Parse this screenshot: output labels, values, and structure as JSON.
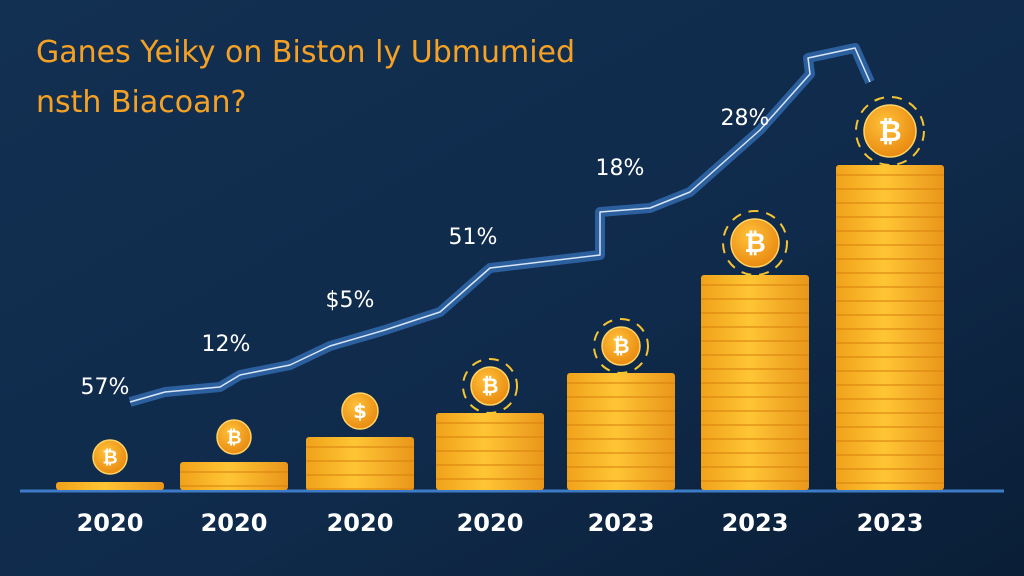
{
  "header": {
    "title_line1": "Ganes Yeiky on Biston ly Ubmumied",
    "title_line2": "nsth Biacoan?"
  },
  "columns": [
    {
      "label": "57%",
      "coin": "₿",
      "year": "2020"
    },
    {
      "label": "12%",
      "coin": "₿",
      "year": "2020"
    },
    {
      "label": "$5%",
      "coin": "$",
      "year": "2020"
    },
    {
      "label": "51%",
      "coin": "₿",
      "year": "2020"
    },
    {
      "label": "18%",
      "coin": "₿",
      "year": "2023"
    },
    {
      "label": "28%",
      "coin": "₿",
      "year": "2023"
    },
    {
      "label": null,
      "coin": "₿",
      "year": "2023"
    }
  ]
}
